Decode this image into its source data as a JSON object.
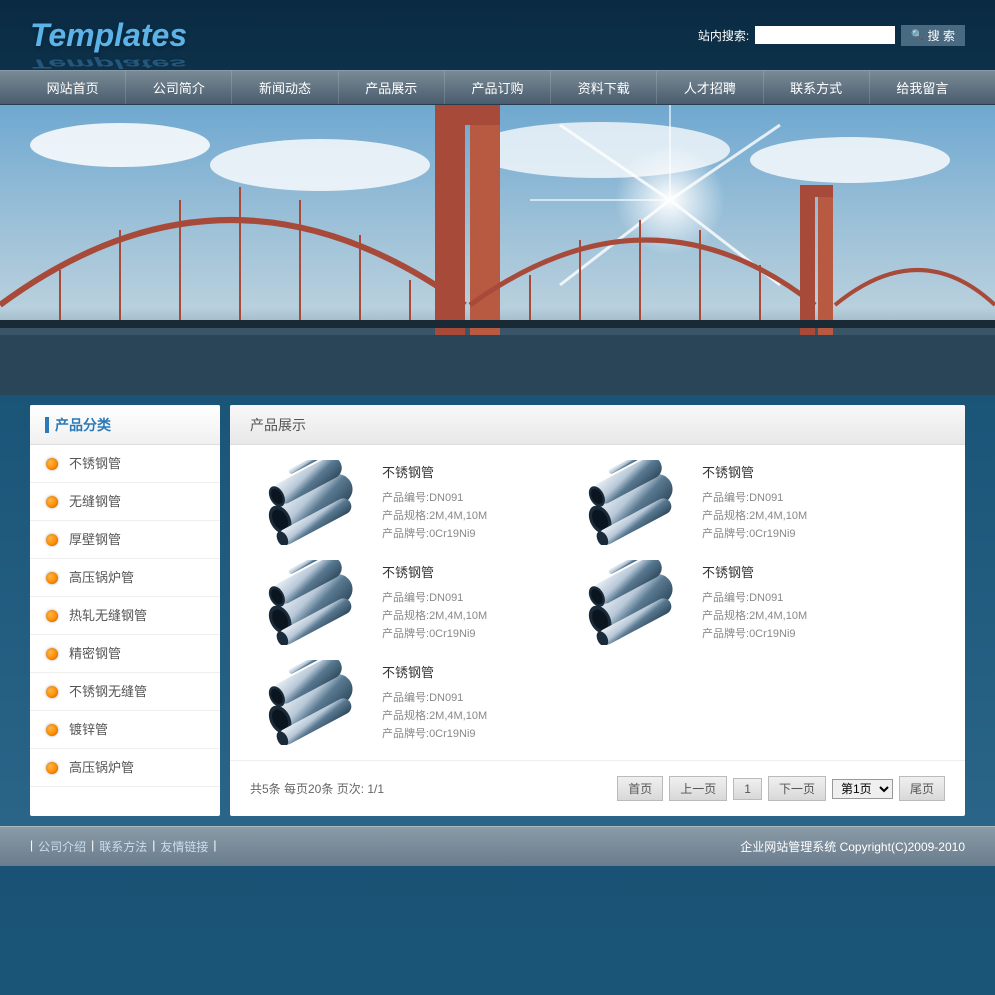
{
  "header": {
    "logo": "Templates",
    "search_label": "站内搜索:",
    "search_btn": "搜 索"
  },
  "nav": {
    "items": [
      "网站首页",
      "公司简介",
      "新闻动态",
      "产品展示",
      "产品订购",
      "资料下载",
      "人才招聘",
      "联系方式",
      "给我留言"
    ]
  },
  "sidebar": {
    "title": "产品分类",
    "items": [
      "不锈钢管",
      "无缝钢管",
      "厚壁钢管",
      "高压锅炉管",
      "热轧无缝钢管",
      "精密钢管",
      "不锈钢无缝管",
      "镀锌管",
      "高压锅炉管"
    ]
  },
  "main": {
    "title": "产品展示"
  },
  "products": [
    {
      "name": "不锈钢管",
      "code_label": "产品编号:",
      "code": "DN091",
      "spec_label": "产品规格:",
      "spec": "2M,4M,10M",
      "brand_label": "产品牌号:",
      "brand": "0Cr19Ni9"
    },
    {
      "name": "不锈钢管",
      "code_label": "产品编号:",
      "code": "DN091",
      "spec_label": "产品规格:",
      "spec": "2M,4M,10M",
      "brand_label": "产品牌号:",
      "brand": "0Cr19Ni9"
    },
    {
      "name": "不锈钢管",
      "code_label": "产品编号:",
      "code": "DN091",
      "spec_label": "产品规格:",
      "spec": "2M,4M,10M",
      "brand_label": "产品牌号:",
      "brand": "0Cr19Ni9"
    },
    {
      "name": "不锈钢管",
      "code_label": "产品编号:",
      "code": "DN091",
      "spec_label": "产品规格:",
      "spec": "2M,4M,10M",
      "brand_label": "产品牌号:",
      "brand": "0Cr19Ni9"
    },
    {
      "name": "不锈钢管",
      "code_label": "产品编号:",
      "code": "DN091",
      "spec_label": "产品规格:",
      "spec": "2M,4M,10M",
      "brand_label": "产品牌号:",
      "brand": "0Cr19Ni9"
    }
  ],
  "pagination": {
    "info": "共5条 每页20条 页次: 1/1",
    "first": "首页",
    "prev": "上一页",
    "num": "1",
    "next": "下一页",
    "select": "第1页",
    "last": "尾页"
  },
  "footer": {
    "links": [
      "公司介绍",
      "联系方法",
      "友情链接"
    ],
    "sep": " | ",
    "copyright": "企业网站管理系统 Copyright(C)2009-2010"
  }
}
